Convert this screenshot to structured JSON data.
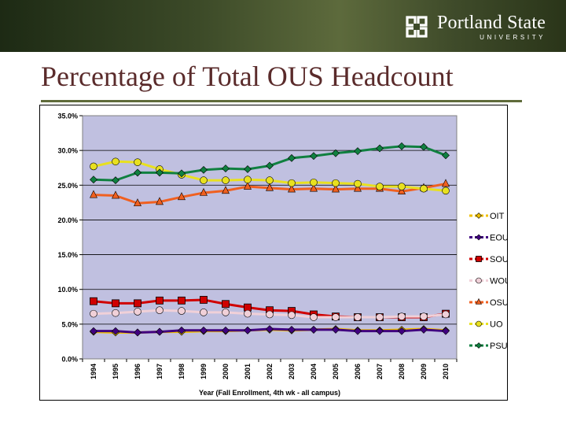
{
  "header": {
    "logo_name": "Portland State",
    "logo_sub": "UNIVERSITY"
  },
  "slide": {
    "title": "Percentage of Total OUS Headcount"
  },
  "colors": {
    "plot_bg": "#c0c0e0",
    "OIT": "#f0c000",
    "EOU": "#400080",
    "SOU": "#d00000",
    "WOU": "#f0d0d8",
    "OSU": "#f06020",
    "UO": "#e8e020",
    "PSU": "#108040"
  },
  "chart_data": {
    "type": "line",
    "title": "",
    "xlabel": "Year (Fall Enrollment, 4th wk - all campus)",
    "ylabel": "",
    "ylim": [
      0,
      35
    ],
    "y_ticks": [
      "0.0%",
      "5.0%",
      "10.0%",
      "15.0%",
      "20.0%",
      "25.0%",
      "30.0%",
      "35.0%"
    ],
    "grid": "horizontal",
    "legend_position": "right",
    "categories": [
      "1994",
      "1995",
      "1996",
      "1997",
      "1998",
      "1999",
      "2000",
      "2001",
      "2002",
      "2003",
      "2004",
      "2005",
      "2006",
      "2007",
      "2008",
      "2009",
      "2010"
    ],
    "series": [
      {
        "name": "OIT",
        "marker": "diamond",
        "values": [
          3.9,
          3.8,
          3.8,
          3.9,
          3.9,
          4.0,
          4.0,
          4.1,
          4.2,
          4.1,
          4.2,
          4.3,
          4.1,
          4.1,
          4.2,
          4.3,
          4.1
        ]
      },
      {
        "name": "EOU",
        "marker": "diamond",
        "values": [
          4.0,
          4.0,
          3.8,
          3.9,
          4.1,
          4.1,
          4.1,
          4.1,
          4.3,
          4.2,
          4.2,
          4.2,
          4.0,
          4.0,
          4.0,
          4.2,
          4.0
        ]
      },
      {
        "name": "SOU",
        "marker": "square",
        "values": [
          8.3,
          8.0,
          8.0,
          8.4,
          8.4,
          8.5,
          7.9,
          7.4,
          7.0,
          6.9,
          6.4,
          6.1,
          6.0,
          6.0,
          6.0,
          6.0,
          6.5
        ]
      },
      {
        "name": "WOU",
        "marker": "circle",
        "values": [
          6.5,
          6.6,
          6.8,
          7.0,
          6.9,
          6.7,
          6.7,
          6.5,
          6.4,
          6.3,
          6.0,
          6.0,
          6.0,
          6.0,
          6.1,
          6.1,
          6.4
        ]
      },
      {
        "name": "OSU",
        "marker": "triangle",
        "values": [
          23.6,
          23.5,
          22.4,
          22.6,
          23.3,
          23.9,
          24.2,
          24.8,
          24.6,
          24.4,
          24.5,
          24.4,
          24.5,
          24.5,
          24.1,
          24.6,
          25.2
        ]
      },
      {
        "name": "UO",
        "marker": "circle",
        "values": [
          27.7,
          28.4,
          28.3,
          27.3,
          26.5,
          25.7,
          25.7,
          25.8,
          25.7,
          25.3,
          25.4,
          25.3,
          25.2,
          24.8,
          24.8,
          24.5,
          24.2
        ]
      },
      {
        "name": "PSU",
        "marker": "diamond",
        "values": [
          25.8,
          25.7,
          26.8,
          26.8,
          26.7,
          27.2,
          27.4,
          27.3,
          27.8,
          28.9,
          29.2,
          29.6,
          29.9,
          30.3,
          30.6,
          30.5,
          29.3
        ]
      }
    ]
  }
}
